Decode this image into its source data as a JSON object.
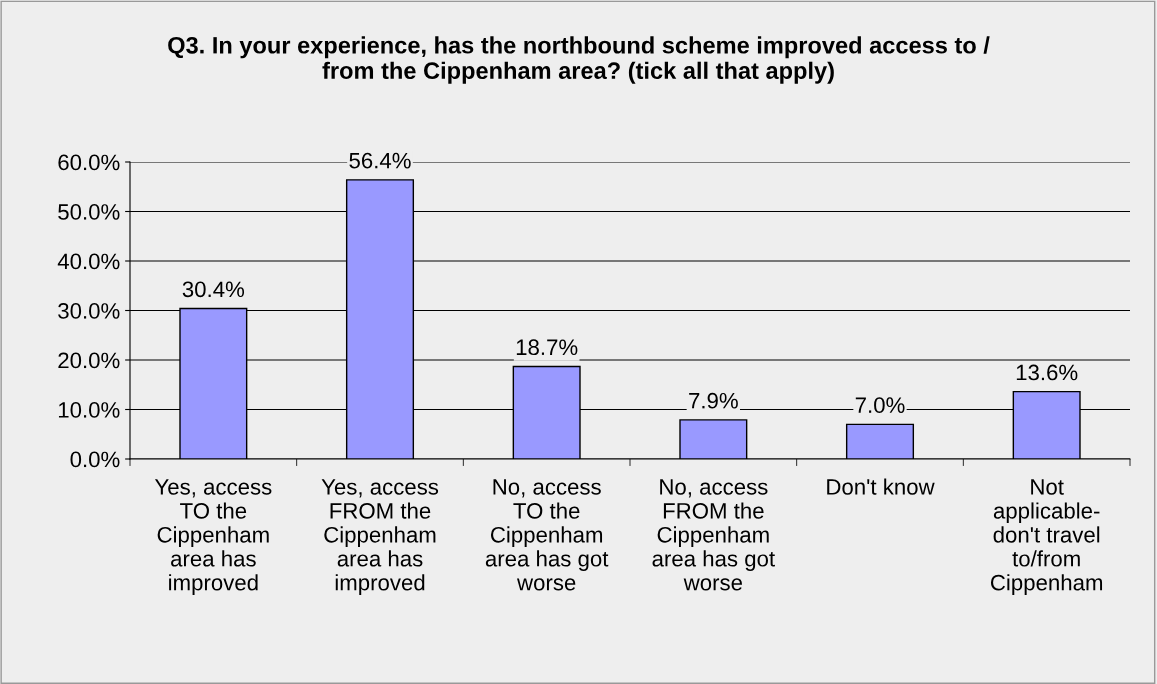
{
  "chart_data": {
    "type": "bar",
    "title": "Q3. In your experience, has the northbound scheme improved access to /\nfrom the Cippenham area? (tick all that apply)",
    "categories": [
      "Yes, access\nTO the\nCippenham\narea has\nimproved",
      "Yes, access\nFROM the\nCippenham\narea has\nimproved",
      "No, access\nTO the\nCippenham\narea has got\nworse",
      "No, access\nFROM the\nCippenham\narea has got\nworse",
      "Don't know",
      "Not\napplicable-\ndon't travel\nto/from\nCippenham"
    ],
    "values": [
      30.4,
      56.4,
      18.7,
      7.9,
      7.0,
      13.6
    ],
    "value_labels": [
      "30.4%",
      "56.4%",
      "18.7%",
      "7.9%",
      "7.0%",
      "13.6%"
    ],
    "color": "#9999ff",
    "ylim": [
      0,
      60
    ],
    "yticks": [
      {
        "value": 0,
        "label": "0.0%"
      },
      {
        "value": 10,
        "label": "10.0%"
      },
      {
        "value": 20,
        "label": "20.0%"
      },
      {
        "value": 30,
        "label": "30.0%"
      },
      {
        "value": 40,
        "label": "40.0%"
      },
      {
        "value": 50,
        "label": "50.0%"
      },
      {
        "value": 60,
        "label": "60.0%"
      }
    ],
    "grid": "y",
    "legend": false
  }
}
